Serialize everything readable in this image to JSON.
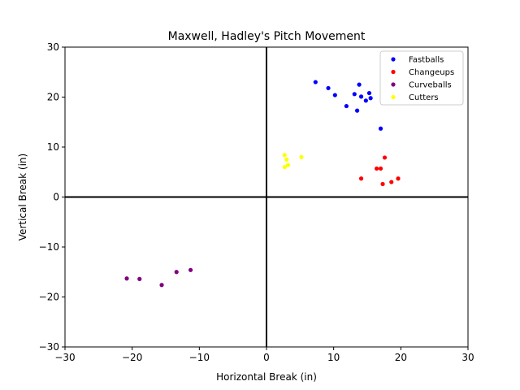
{
  "chart_data": {
    "type": "scatter",
    "title": "Maxwell, Hadley's Pitch Movement",
    "xlabel": "Horizontal Break (in)",
    "ylabel": "Vertical Break (in)",
    "xlim": [
      -30,
      30
    ],
    "ylim": [
      -30,
      30
    ],
    "xticks": [
      -30,
      -20,
      -10,
      0,
      10,
      20,
      30
    ],
    "yticks": [
      -30,
      -20,
      -10,
      0,
      10,
      20,
      30
    ],
    "xtick_labels": [
      "−30",
      "−20",
      "−10",
      "0",
      "10",
      "20",
      "30"
    ],
    "ytick_labels": [
      "−30",
      "−20",
      "−10",
      "0",
      "10",
      "20",
      "30"
    ],
    "grid": false,
    "legend_position": "top-right",
    "series": [
      {
        "name": "Fastballs",
        "color": "#0000ff",
        "points": [
          [
            7.3,
            23.0
          ],
          [
            9.2,
            21.8
          ],
          [
            10.2,
            20.4
          ],
          [
            11.9,
            18.2
          ],
          [
            13.1,
            20.6
          ],
          [
            13.5,
            17.3
          ],
          [
            13.8,
            22.5
          ],
          [
            14.1,
            20.1
          ],
          [
            14.8,
            19.3
          ],
          [
            15.3,
            20.8
          ],
          [
            15.5,
            19.8
          ],
          [
            17.0,
            13.7
          ]
        ]
      },
      {
        "name": "Changeups",
        "color": "#ff0000",
        "points": [
          [
            14.1,
            3.7
          ],
          [
            16.4,
            5.7
          ],
          [
            17.0,
            5.7
          ],
          [
            17.6,
            7.9
          ],
          [
            17.3,
            2.6
          ],
          [
            18.6,
            3.0
          ],
          [
            19.6,
            3.7
          ]
        ]
      },
      {
        "name": "Curveballs",
        "color": "#800080",
        "points": [
          [
            -20.8,
            -16.3
          ],
          [
            -18.9,
            -16.4
          ],
          [
            -15.6,
            -17.6
          ],
          [
            -13.4,
            -15.0
          ],
          [
            -11.3,
            -14.6
          ]
        ]
      },
      {
        "name": "Cutters",
        "color": "#ffff00",
        "points": [
          [
            2.7,
            8.4
          ],
          [
            3.0,
            7.5
          ],
          [
            3.2,
            6.4
          ],
          [
            2.7,
            6.0
          ],
          [
            5.2,
            8.0
          ]
        ]
      }
    ]
  }
}
